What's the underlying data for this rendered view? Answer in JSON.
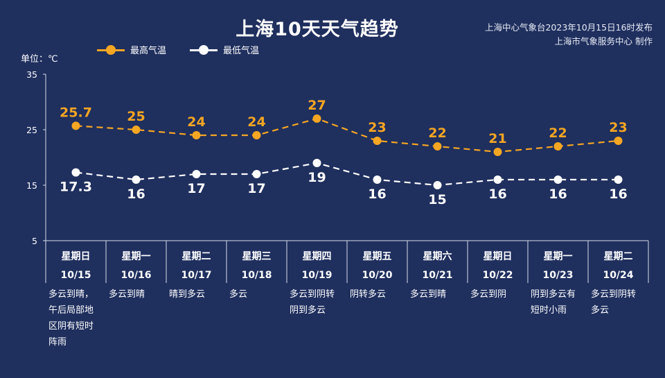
{
  "header": {
    "title": "上海10天天气趋势",
    "source_line1": "上海中心气象台2023年10月15日16时发布",
    "source_line2": "上海市气象服务中心 制作"
  },
  "unit_label": "单位：℃",
  "legend": {
    "high": "最高气温",
    "low": "最低气温"
  },
  "colors": {
    "background": "#1f2f5e",
    "high": "#f5a623",
    "low": "#ffffff",
    "axis": "#d9dfe9"
  },
  "chart_data": {
    "type": "line",
    "categories": [
      "星期日",
      "星期一",
      "星期二",
      "星期三",
      "星期四",
      "星期五",
      "星期六",
      "星期日",
      "星期一",
      "星期二"
    ],
    "dates": [
      "10/15",
      "10/16",
      "10/17",
      "10/18",
      "10/19",
      "10/20",
      "10/21",
      "10/22",
      "10/23",
      "10/24"
    ],
    "series": [
      {
        "name": "最高气温",
        "values": [
          25.7,
          25,
          24,
          24,
          27,
          23,
          22,
          21,
          22,
          23
        ]
      },
      {
        "name": "最低气温",
        "values": [
          17.3,
          16,
          17,
          17,
          19,
          16,
          15,
          16,
          16,
          16
        ]
      }
    ],
    "y_ticks": [
      35,
      25,
      15,
      5
    ],
    "ylim": [
      5,
      35
    ],
    "weather": [
      "多云到晴，\n午后局部地\n区阴有短时\n阵雨",
      "多云到晴",
      "晴到多云",
      "多云",
      "多云到阴转\n阴到多云",
      "阴转多云",
      "多云到晴",
      "多云到阴",
      "阴到多云有\n短时小雨",
      "多云到阴转\n多云"
    ]
  }
}
